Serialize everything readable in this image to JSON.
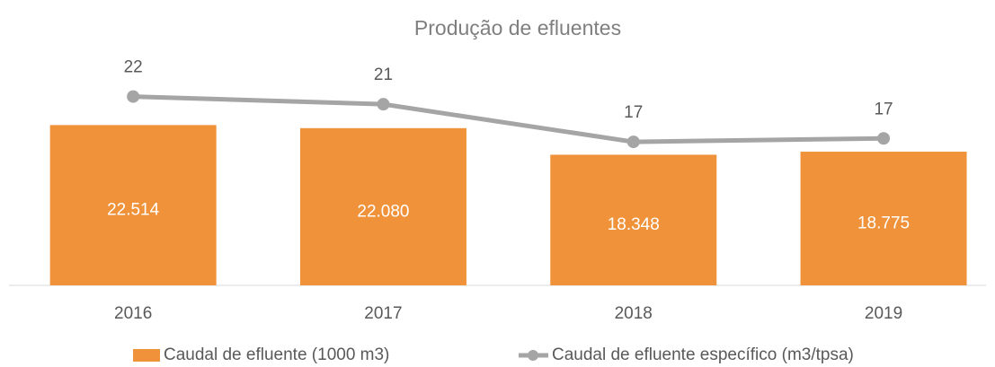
{
  "chart_data": {
    "type": "bar-line",
    "title": "Produção de efluentes",
    "categories": [
      "2016",
      "2017",
      "2018",
      "2019"
    ],
    "series": [
      {
        "name": "Caudal de efluente (1000 m3)",
        "type": "bar",
        "color": "#f0923a",
        "values": [
          22514,
          22080,
          18348,
          18775
        ],
        "value_labels": [
          "22.514",
          "22.080",
          "18.348",
          "18.775"
        ]
      },
      {
        "name": "Caudal de efluente específico (m3/tpsa)",
        "type": "line",
        "axis": "y2",
        "color": "#a5a5a5",
        "values": [
          22.1,
          21.2,
          16.8,
          17.2
        ],
        "value_labels": [
          "22",
          "21",
          "17",
          "17"
        ]
      }
    ],
    "ylim": [
      0,
      30000
    ],
    "y2lim": [
      0,
      25
    ],
    "grid": false,
    "legend": "bottom"
  }
}
